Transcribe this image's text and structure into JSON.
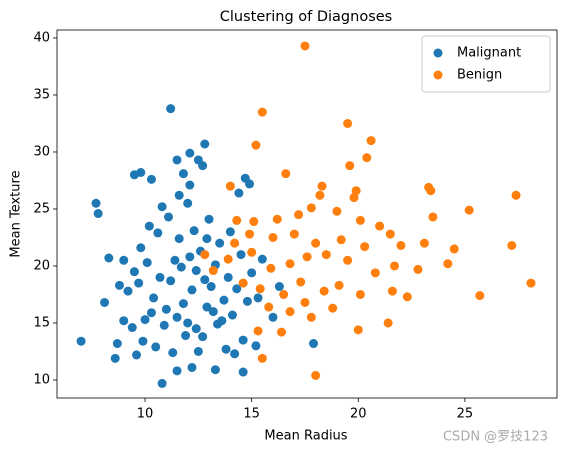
{
  "chart_data": {
    "type": "scatter",
    "title": "Clustering of Diagnoses",
    "x_label": "Mean Radius",
    "y_label": "Mean Texture",
    "xlim": [
      5.87,
      29.32
    ],
    "ylim": [
      8.42,
      40.7
    ],
    "xticks": [
      10,
      15,
      20,
      25
    ],
    "yticks": [
      10,
      15,
      20,
      25,
      30,
      35,
      40
    ],
    "legend": "upper right",
    "watermark": "CSDN @罗技123",
    "series": [
      {
        "name": "Malignant",
        "color": "#1f77b4",
        "x": [
          7.0,
          7.7,
          7.8,
          8.6,
          8.3,
          8.1,
          9.0,
          8.7,
          9.5,
          9.8,
          10.3,
          11.2,
          11.5,
          12.1,
          12.5,
          12.8,
          10.8,
          11.5,
          12.2,
          13.3,
          14.6,
          17.9,
          14.7,
          14.9,
          14.4,
          12.1,
          11.8,
          12.7,
          9.2,
          9.5,
          9.8,
          9.7,
          10.1,
          10.4,
          10.0,
          9.4,
          9.9,
          10.5,
          10.9,
          11.0,
          11.2,
          11.4,
          11.6,
          11.1,
          10.8,
          10.6,
          11.8,
          12.0,
          12.2,
          12.4,
          12.6,
          12.3,
          12.7,
          12.9,
          13.1,
          13.3,
          13.5,
          13.0,
          13.4,
          13.7,
          13.9,
          14.1,
          14.3,
          14.5,
          14.0,
          13.8,
          12.5,
          11.9,
          11.5,
          10.7,
          10.2,
          9.6,
          9.0,
          8.8,
          11.3,
          12.1,
          12.8,
          13.2,
          14.8,
          15.0,
          15.3,
          15.5,
          14.6,
          12.0,
          11.6,
          12.4,
          13.6,
          11.7,
          10.3,
          12.9,
          14.2,
          15.2,
          16.0,
          16.3
        ],
        "values": [
          13.4,
          25.5,
          24.6,
          11.9,
          20.7,
          16.8,
          15.2,
          13.2,
          28.0,
          28.2,
          27.6,
          33.8,
          29.3,
          29.9,
          29.3,
          30.7,
          9.7,
          10.8,
          11.1,
          10.9,
          10.7,
          13.2,
          27.7,
          27.2,
          26.4,
          27.1,
          28.1,
          28.8,
          17.8,
          19.5,
          21.6,
          18.5,
          20.3,
          17.2,
          15.3,
          14.6,
          13.4,
          12.9,
          14.8,
          16.2,
          18.7,
          20.5,
          22.4,
          24.3,
          25.2,
          22.9,
          16.7,
          15.0,
          17.9,
          19.6,
          21.3,
          23.1,
          13.8,
          16.4,
          18.2,
          20.1,
          22.0,
          24.1,
          14.9,
          17.0,
          19.0,
          15.7,
          18.0,
          21.0,
          23.0,
          12.7,
          12.5,
          13.9,
          15.5,
          19.0,
          23.5,
          12.2,
          20.5,
          18.3,
          12.4,
          20.8,
          18.8,
          16.0,
          16.9,
          19.4,
          17.2,
          20.6,
          13.5,
          25.5,
          26.2,
          14.5,
          15.2,
          19.9,
          15.9,
          22.4,
          12.3,
          13.0,
          15.5,
          18.2
        ]
      },
      {
        "name": "Benign",
        "color": "#ff7f0e",
        "x": [
          17.5,
          15.5,
          19.5,
          15.2,
          20.6,
          19.6,
          20.4,
          14.0,
          16.6,
          18.2,
          18.3,
          19.8,
          19.9,
          23.3,
          23.4,
          27.4,
          25.2,
          23.5,
          14.3,
          15.1,
          16.2,
          17.2,
          17.8,
          19.0,
          20.1,
          21.0,
          16.0,
          17.0,
          18.0,
          19.2,
          20.3,
          21.5,
          22.0,
          23.1,
          24.5,
          27.2,
          28.1,
          25.7,
          24.2,
          22.8,
          21.7,
          20.8,
          19.5,
          18.5,
          17.6,
          16.8,
          15.9,
          15.0,
          14.2,
          13.9,
          14.6,
          15.4,
          16.5,
          17.3,
          18.4,
          19.1,
          20.1,
          21.6,
          22.3,
          15.8,
          16.8,
          17.5,
          18.8,
          20.0,
          21.4,
          16.4,
          15.3,
          15.5,
          18.0,
          17.8,
          13.2,
          12.8,
          14.9
        ],
        "values": [
          39.3,
          33.5,
          32.5,
          30.6,
          31.0,
          28.8,
          29.5,
          27.0,
          28.1,
          26.2,
          27.0,
          26.0,
          26.6,
          26.9,
          26.6,
          26.2,
          24.9,
          24.3,
          24.0,
          23.9,
          24.1,
          24.5,
          25.1,
          24.8,
          24.0,
          23.5,
          22.5,
          22.8,
          22.0,
          22.3,
          21.7,
          22.8,
          21.8,
          22.0,
          21.5,
          21.8,
          18.5,
          17.4,
          20.2,
          19.7,
          20.0,
          19.4,
          20.5,
          21.0,
          20.8,
          20.2,
          19.8,
          21.2,
          22.0,
          20.6,
          18.5,
          18.0,
          17.5,
          18.6,
          17.8,
          18.3,
          17.5,
          17.8,
          17.3,
          16.4,
          16.0,
          16.8,
          16.3,
          14.4,
          15.0,
          14.2,
          14.3,
          11.9,
          10.4,
          15.5,
          19.6,
          21.0,
          22.8
        ]
      }
    ]
  }
}
